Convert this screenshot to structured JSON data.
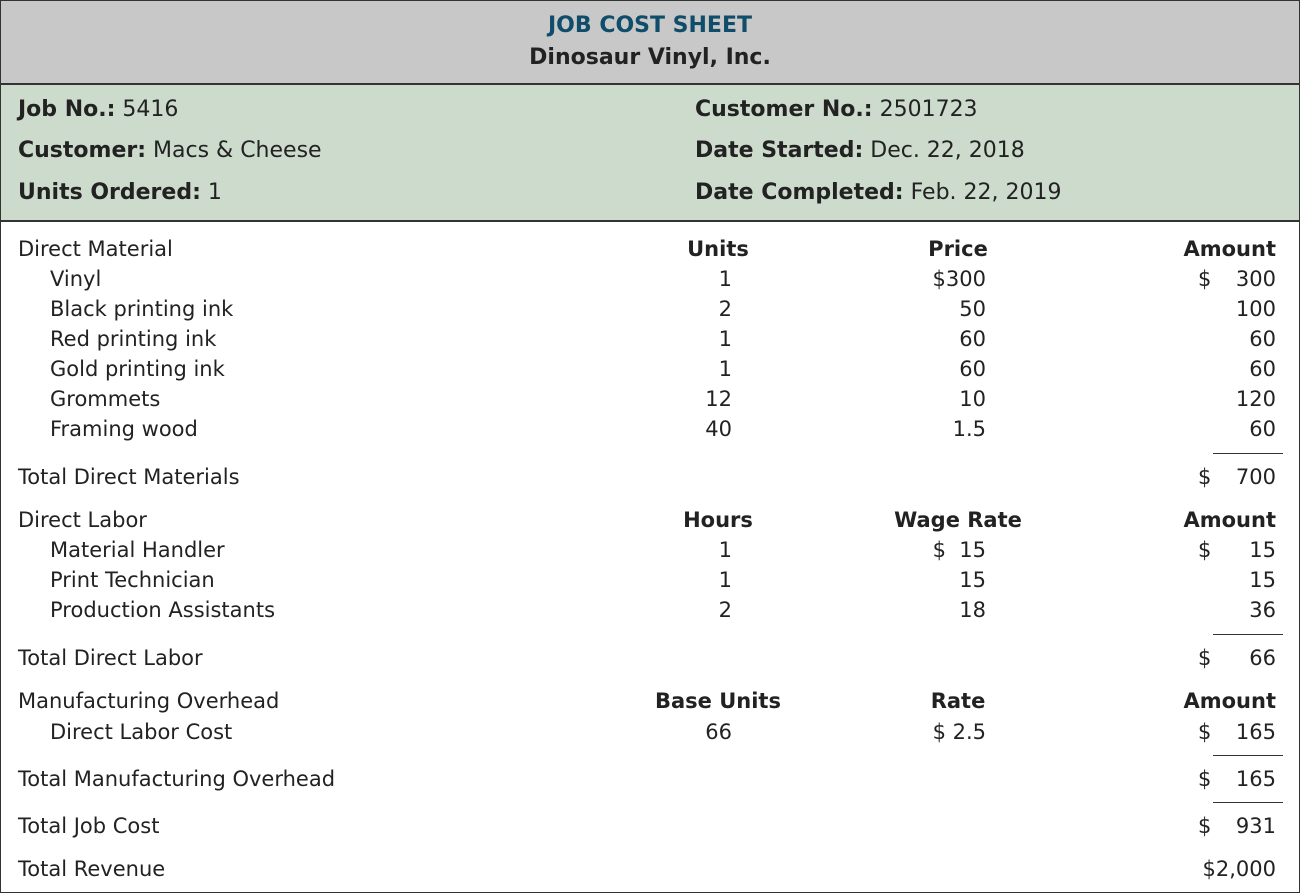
{
  "header": {
    "title": "JOB COST SHEET",
    "company": "Dinosaur Vinyl, Inc."
  },
  "info": {
    "job_no": {
      "label": "Job No.:",
      "value": "5416"
    },
    "customer": {
      "label": "Customer:",
      "value": "Macs & Cheese"
    },
    "units_ordered": {
      "label": "Units Ordered:",
      "value": "1"
    },
    "customer_no": {
      "label": "Customer No.:",
      "value": "2501723"
    },
    "date_started": {
      "label": "Date Started:",
      "value": "Dec. 22, 2018"
    },
    "date_completed": {
      "label": "Date Completed:",
      "value": "Feb. 22, 2019"
    }
  },
  "colors": {
    "header_bg": "#c8c8c8",
    "title": "#0f4d6a",
    "info_bg": "#cddbcd"
  },
  "rows": [
    {
      "type": "section",
      "label": "Direct Material",
      "col1": "Units",
      "col2": "Price",
      "amount": "Amount"
    },
    {
      "type": "item",
      "label": "Vinyl",
      "col1": "1",
      "col2": "$300",
      "dollar": "$",
      "amount": "300"
    },
    {
      "type": "item",
      "label": "Black printing ink",
      "col1": "2",
      "col2": "50",
      "amount": "100"
    },
    {
      "type": "item",
      "label": "Red printing ink",
      "col1": "1",
      "col2": "60",
      "amount": "60"
    },
    {
      "type": "item",
      "label": "Gold printing ink",
      "col1": "1",
      "col2": "60",
      "amount": "60"
    },
    {
      "type": "item",
      "label": "Grommets",
      "col1": "12",
      "col2": "10",
      "amount": "120"
    },
    {
      "type": "item",
      "label": "Framing wood",
      "col1": "40",
      "col2": "1.5",
      "amount": "60"
    },
    {
      "type": "total",
      "label": "Total Direct Materials",
      "dollar": "$",
      "amount": "700"
    },
    {
      "type": "section",
      "label": "Direct Labor",
      "col1": "Hours",
      "col2": "Wage Rate",
      "amount": "Amount"
    },
    {
      "type": "item",
      "label": "Material Handler",
      "col1": "1",
      "col2": "$  15",
      "dollar": "$",
      "amount": "15"
    },
    {
      "type": "item",
      "label": "Print Technician",
      "col1": "1",
      "col2": "15",
      "amount": "15"
    },
    {
      "type": "item",
      "label": "Production Assistants",
      "col1": "2",
      "col2": "18",
      "amount": "36"
    },
    {
      "type": "total",
      "label": "Total Direct Labor",
      "dollar": "$",
      "amount": "66"
    },
    {
      "type": "section",
      "label": "Manufacturing Overhead",
      "col1": "Base Units",
      "col2": "Rate",
      "amount": "Amount"
    },
    {
      "type": "item",
      "label": "Direct Labor Cost",
      "col1": "66",
      "col2": "$ 2.5",
      "dollar": "$",
      "amount": "165"
    },
    {
      "type": "total",
      "label": "Total Manufacturing Overhead",
      "dollar": "$",
      "amount": "165"
    },
    {
      "type": "total",
      "label": "Total Job Cost",
      "dollar": "$",
      "amount": "931"
    },
    {
      "type": "total",
      "label": "Total Revenue",
      "amount": "$2,000"
    }
  ]
}
